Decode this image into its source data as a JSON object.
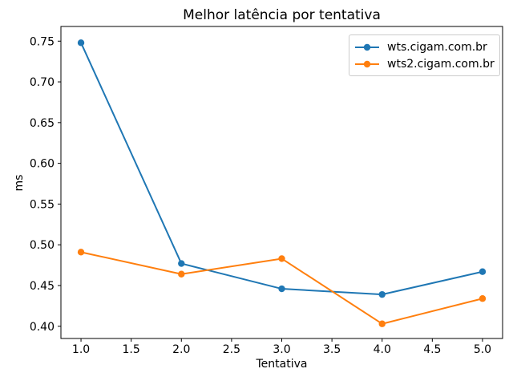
{
  "chart_data": {
    "type": "line",
    "title": "Melhor latência por tentativa",
    "xlabel": "Tentativa",
    "ylabel": "ms",
    "x": [
      1,
      2,
      3,
      4,
      5
    ],
    "series": [
      {
        "name": "wts.cigam.com.br",
        "color": "#1f77b4",
        "marker": "o",
        "values": [
          0.748,
          0.477,
          0.446,
          0.439,
          0.467
        ]
      },
      {
        "name": "wts2.cigam.com.br",
        "color": "#ff7f0e",
        "marker": "o",
        "values": [
          0.491,
          0.464,
          0.483,
          0.403,
          0.434
        ]
      }
    ],
    "xlim": [
      0.8,
      5.2
    ],
    "ylim": [
      0.385,
      0.768
    ],
    "xticks": [
      "1.0",
      "1.5",
      "2.0",
      "2.5",
      "3.0",
      "3.5",
      "4.0",
      "4.5",
      "5.0"
    ],
    "yticks": [
      "0.40",
      "0.45",
      "0.50",
      "0.55",
      "0.60",
      "0.65",
      "0.70",
      "0.75"
    ],
    "grid": false,
    "legend_position": "upper right",
    "axis_color": "#000000",
    "background_color": "#ffffff"
  }
}
